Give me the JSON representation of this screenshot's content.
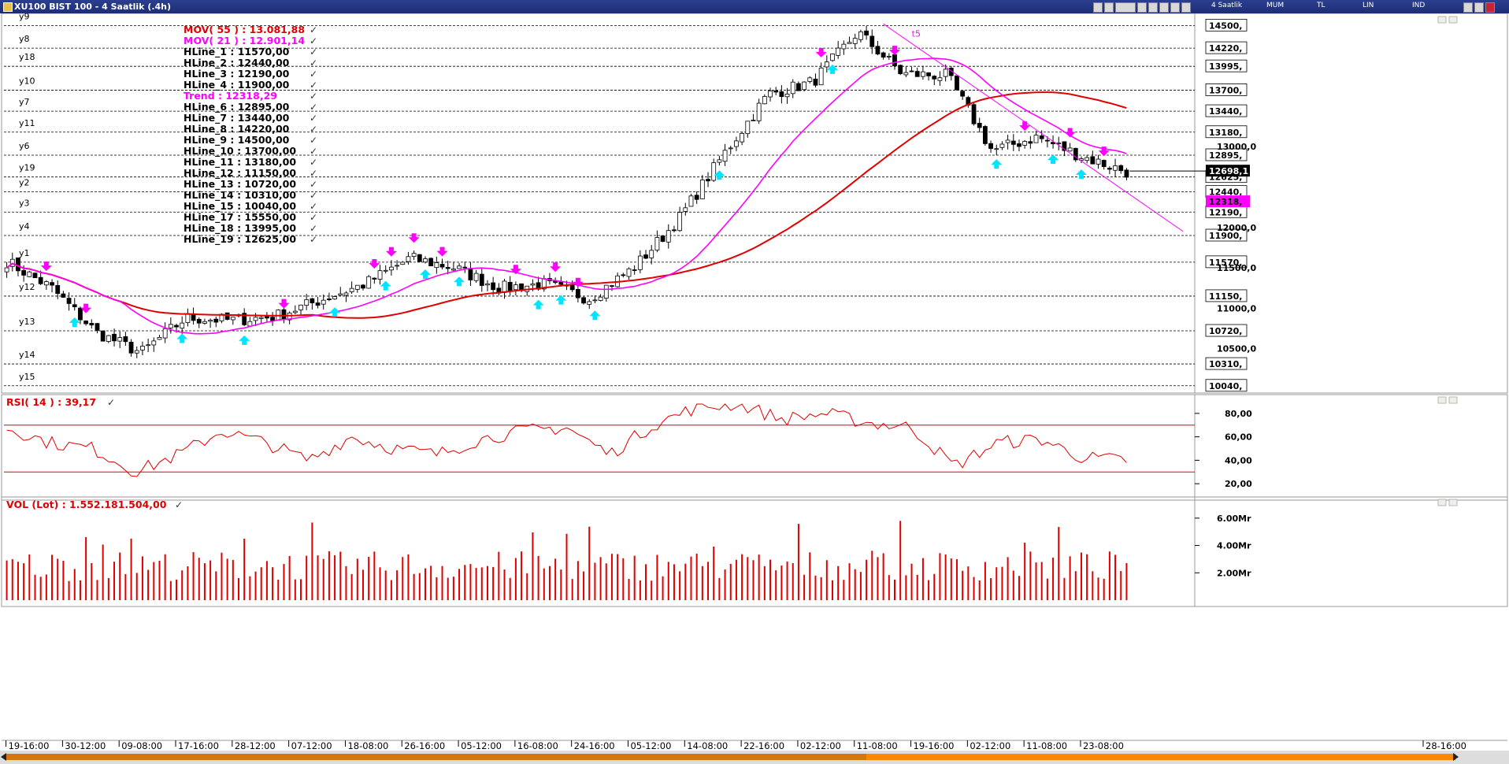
{
  "window": {
    "title": "XU100 BIST 100 - 4 Saatlik (.4h)",
    "toolbar_labels": [
      "4 Saatlik",
      "MUM",
      "TL",
      "LIN",
      "IND"
    ]
  },
  "colors": {
    "mov55": "#e00000",
    "mov21": "#ff00ff",
    "trend": "#ff00ff",
    "candle": "#000000",
    "hline": "#000000",
    "rsi": "#e00000",
    "volume": "#e00000",
    "buy_arrow": "#00e5ff",
    "sell_arrow": "#ff00ff"
  },
  "chart_data": [
    {
      "type": "candlestick",
      "panel": "price",
      "legend": [
        {
          "text": "MOV( 55 ) : 13.081,88",
          "color": "#e00000"
        },
        {
          "text": "MOV( 21 ) : 12.901,14",
          "color": "#ff00ff"
        },
        {
          "text": "HLine_1   : 11570,00",
          "color": "#000000"
        },
        {
          "text": "HLine_2   : 12440,00",
          "color": "#000000"
        },
        {
          "text": "HLine_3   : 12190,00",
          "color": "#000000"
        },
        {
          "text": "HLine_4   : 11900,00",
          "color": "#000000"
        },
        {
          "text": "Trend     : 12318,29",
          "color": "#ff00ff"
        },
        {
          "text": "HLine_6   : 12895,00",
          "color": "#000000"
        },
        {
          "text": "HLine_7   : 13440,00",
          "color": "#000000"
        },
        {
          "text": "HLine_8   : 14220,00",
          "color": "#000000"
        },
        {
          "text": "HLine_9   : 14500,00",
          "color": "#000000"
        },
        {
          "text": "HLine_10 : 13700,00",
          "color": "#000000"
        },
        {
          "text": "HLine_11 : 13180,00",
          "color": "#000000"
        },
        {
          "text": "HLine_12 : 11150,00",
          "color": "#000000"
        },
        {
          "text": "HLine_13 : 10720,00",
          "color": "#000000"
        },
        {
          "text": "HLine_14 : 10310,00",
          "color": "#000000"
        },
        {
          "text": "HLine_15 : 10040,00",
          "color": "#000000"
        },
        {
          "text": "HLine_17 : 15550,00",
          "color": "#000000"
        },
        {
          "text": "HLine_18 : 13995,00",
          "color": "#000000"
        },
        {
          "text": "HLine_19 : 12625,00",
          "color": "#000000"
        }
      ],
      "hlines": [
        {
          "name": "y9",
          "value": 14500,
          "label": "14500,"
        },
        {
          "name": "y8",
          "value": 14220,
          "label": "14220,"
        },
        {
          "name": "y18",
          "value": 13995,
          "label": "13995,"
        },
        {
          "name": "y10",
          "value": 13700,
          "label": "13700,"
        },
        {
          "name": "y7",
          "value": 13440,
          "label": "13440,"
        },
        {
          "name": "y11",
          "value": 13180,
          "label": "13180,"
        },
        {
          "name": "y6",
          "value": 12895,
          "label": "12895,"
        },
        {
          "name": "y19",
          "value": 12625,
          "label": "12625,"
        },
        {
          "name": "y2",
          "value": 12440,
          "label": "12440,"
        },
        {
          "name": "y3",
          "value": 12190,
          "label": "12190,"
        },
        {
          "name": "y4",
          "value": 11900,
          "label": "11900,"
        },
        {
          "name": "y1",
          "value": 11570,
          "label": "11570,"
        },
        {
          "name": "y12",
          "value": 11150,
          "label": "11150,"
        },
        {
          "name": "y13",
          "value": 10720,
          "label": "10720,"
        },
        {
          "name": "y14",
          "value": 10310,
          "label": "10310,"
        },
        {
          "name": "y15",
          "value": 10040,
          "label": "10040,"
        }
      ],
      "y_ticks": [
        {
          "value": 13000,
          "label": "13000,0"
        },
        {
          "value": 12000,
          "label": "12000,0"
        },
        {
          "value": 11500,
          "label": "11500,0"
        },
        {
          "value": 11000,
          "label": "11000,0"
        },
        {
          "value": 10500,
          "label": "10500,0"
        }
      ],
      "badges": [
        {
          "value": 12698,
          "label": "12698,1",
          "bg": "#000000",
          "fg": "#ffffff"
        },
        {
          "value": 12318.29,
          "label": "12318,",
          "bg": "#ff00ff",
          "fg": "#000000"
        }
      ],
      "ylim": [
        9950,
        14650
      ],
      "x_labels": [
        "19-16:00",
        "30-12:00",
        "09-08:00",
        "17-16:00",
        "28-12:00",
        "07-12:00",
        "18-08:00",
        "26-16:00",
        "05-12:00",
        "16-08:00",
        "24-16:00",
        "05-12:00",
        "14-08:00",
        "22-16:00",
        "02-12:00",
        "11-08:00",
        "19-16:00",
        "02-12:00",
        "11-08:00",
        "23-08:00",
        "28-16:00"
      ],
      "anchors_index": [
        0,
        10,
        20,
        30,
        40,
        50,
        60,
        70,
        80,
        90,
        100,
        110,
        120,
        130,
        140,
        150,
        160,
        170,
        180,
        190,
        198
      ],
      "anchors_close": [
        11580,
        11250,
        10700,
        10450,
        10880,
        10850,
        10900,
        11100,
        11300,
        11620,
        11500,
        11250,
        11300,
        11120,
        11500,
        12100,
        12900,
        13650,
        13800,
        14420,
        13900,
        13880,
        12950,
        13120,
        12880,
        12690
      ],
      "trend_label": "t5",
      "trend_line": {
        "start_index": 155,
        "start_value": 14520,
        "end_index": 208,
        "end_value": 11950
      },
      "sell_signals": [
        7,
        14,
        49,
        65,
        68,
        72,
        77,
        90,
        97,
        101,
        144,
        157,
        180,
        188,
        194
      ],
      "buy_signals": [
        12,
        31,
        42,
        58,
        67,
        74,
        80,
        94,
        98,
        104,
        126,
        146,
        175,
        185,
        190
      ]
    },
    {
      "type": "line",
      "panel": "rsi",
      "title": "RSI( 14 ) : 39,17",
      "ylim": [
        10,
        92
      ],
      "levels": [
        70,
        30
      ],
      "y_ticks": [
        "80,00",
        "60,00",
        "40,00",
        "20,00"
      ],
      "y_tick_values": [
        80,
        60,
        40,
        20
      ],
      "anchors": [
        68,
        55,
        50,
        30,
        45,
        65,
        55,
        40,
        60,
        50,
        45,
        58,
        65,
        68,
        45,
        70,
        85,
        88,
        75,
        80,
        72,
        68,
        35,
        55,
        58,
        42,
        40
      ]
    },
    {
      "type": "bar",
      "panel": "volume",
      "title": "VOL (Lot) : 1.552.181.504,00",
      "ylim": [
        0,
        7.2
      ],
      "y_ticks": [
        "6.00Mr",
        "4.00Mr",
        "2.00Mr"
      ],
      "y_tick_values": [
        6,
        4,
        2
      ],
      "unit": "Mr"
    }
  ]
}
